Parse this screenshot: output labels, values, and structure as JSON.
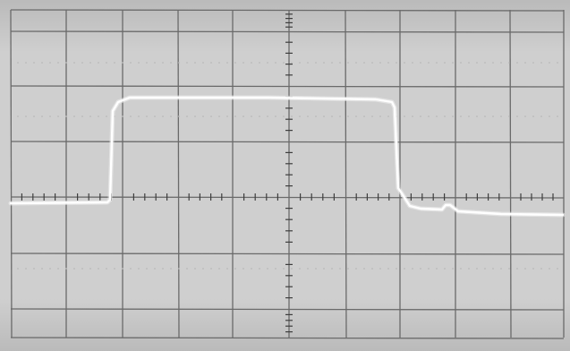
{
  "scope": {
    "screen_color": "#cfcfcf",
    "screen_shade_color": "#b9b9b9",
    "grid_color": "#6a6a6a",
    "tick_color": "#3e3e3e",
    "trace_color": "#ffffff",
    "trace_glow_color": "#f2f2f2",
    "divisions_horizontal": 10,
    "divisions_vertical": 6
  }
}
